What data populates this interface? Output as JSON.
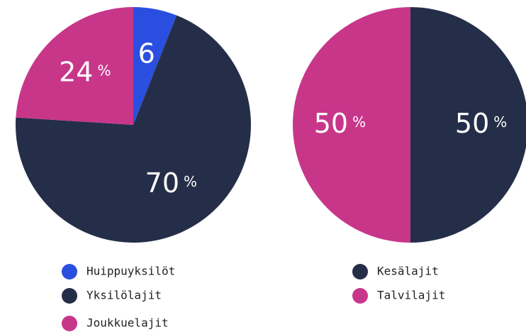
{
  "chart_data": [
    {
      "type": "pie",
      "categories": [
        "Huippuyksilöt",
        "Yksilölajit",
        "Joukkuelajit"
      ],
      "values": [
        6,
        70,
        24
      ],
      "value_labels": [
        "6",
        "70%",
        "24%"
      ],
      "colors": [
        "#2a4fe0",
        "#252e48",
        "#c8368a"
      ]
    },
    {
      "type": "pie",
      "categories": [
        "Kesälajit",
        "Talvilajit"
      ],
      "values": [
        50,
        50
      ],
      "value_labels": [
        "50%",
        "50%"
      ],
      "colors": [
        "#252e48",
        "#c8368a"
      ]
    }
  ]
}
